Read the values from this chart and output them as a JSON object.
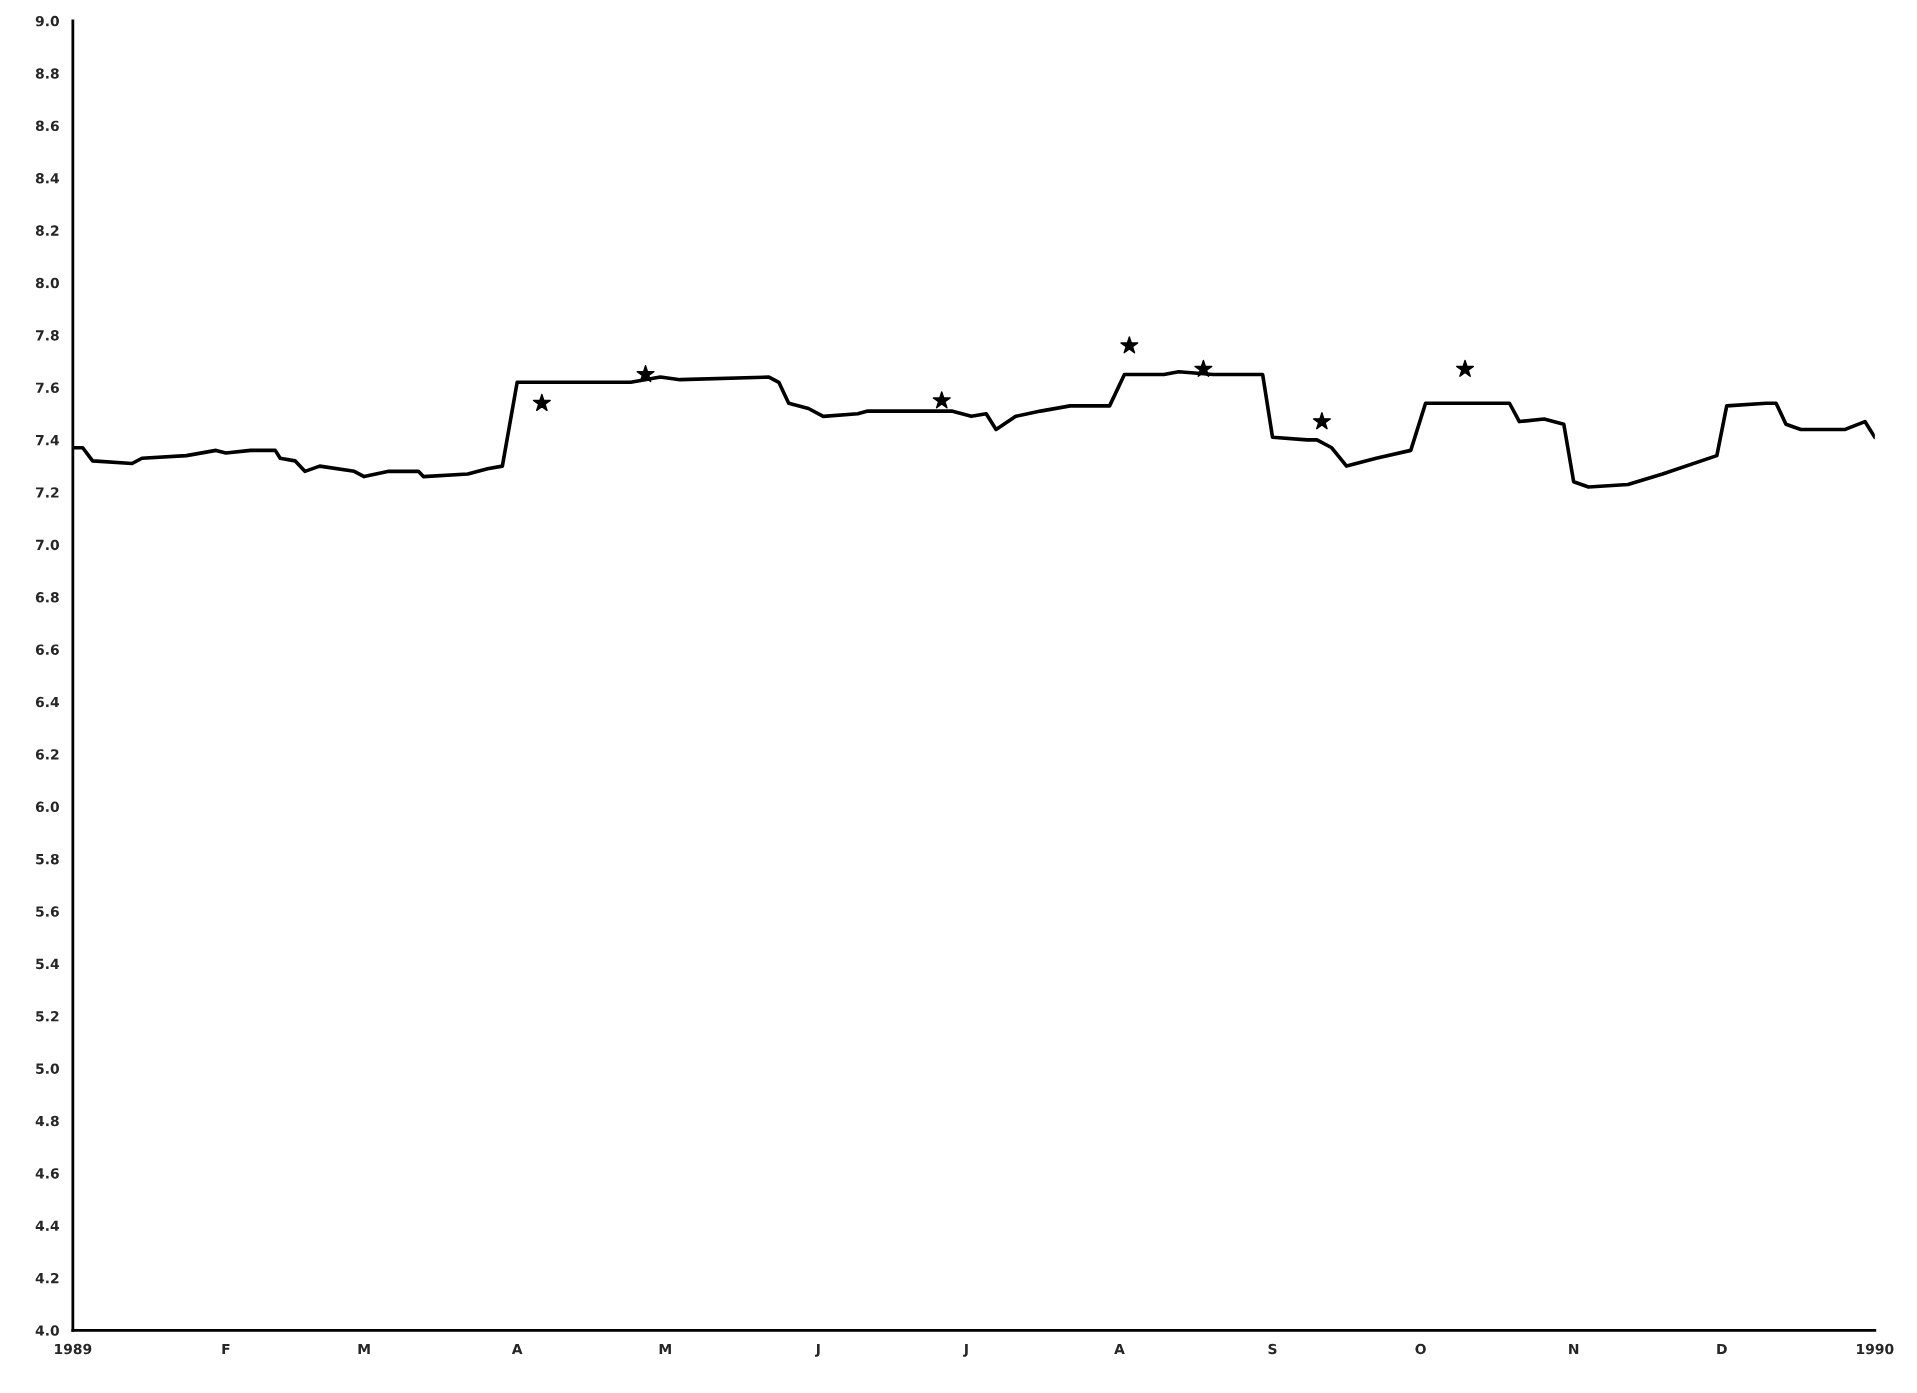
{
  "chart_data": {
    "type": "line",
    "xlim": [
      "1989-01-01",
      "1990-01-01"
    ],
    "xticks": [
      {
        "value": "1989-01-01",
        "label": "1989"
      },
      {
        "value": "1989-02-01",
        "label": "F"
      },
      {
        "value": "1989-03-01",
        "label": "M"
      },
      {
        "value": "1989-04-01",
        "label": "A"
      },
      {
        "value": "1989-05-01",
        "label": "M"
      },
      {
        "value": "1989-06-01",
        "label": "J"
      },
      {
        "value": "1989-07-01",
        "label": "J"
      },
      {
        "value": "1989-08-01",
        "label": "A"
      },
      {
        "value": "1989-09-01",
        "label": "S"
      },
      {
        "value": "1989-10-01",
        "label": "O"
      },
      {
        "value": "1989-11-01",
        "label": "N"
      },
      {
        "value": "1989-12-01",
        "label": "D"
      },
      {
        "value": "1990-01-01",
        "label": "1990"
      }
    ],
    "ylim": [
      4.0,
      9.0
    ],
    "yticks": [
      {
        "value": 4.0,
        "label": "4.0"
      },
      {
        "value": 4.2,
        "label": "4.2"
      },
      {
        "value": 4.4,
        "label": "4.4"
      },
      {
        "value": 4.6,
        "label": "4.6"
      },
      {
        "value": 4.8,
        "label": "4.8"
      },
      {
        "value": 5.0,
        "label": "5.0"
      },
      {
        "value": 5.2,
        "label": "5.2"
      },
      {
        "value": 5.4,
        "label": "5.4"
      },
      {
        "value": 5.6,
        "label": "5.6"
      },
      {
        "value": 5.8,
        "label": "5.8"
      },
      {
        "value": 6.0,
        "label": "6.0"
      },
      {
        "value": 6.2,
        "label": "6.2"
      },
      {
        "value": 6.4,
        "label": "6.4"
      },
      {
        "value": 6.6,
        "label": "6.6"
      },
      {
        "value": 6.8,
        "label": "6.8"
      },
      {
        "value": 7.0,
        "label": "7.0"
      },
      {
        "value": 7.2,
        "label": "7.2"
      },
      {
        "value": 7.4,
        "label": "7.4"
      },
      {
        "value": 7.6,
        "label": "7.6"
      },
      {
        "value": 7.8,
        "label": "7.8"
      },
      {
        "value": 8.0,
        "label": "8.0"
      },
      {
        "value": 8.2,
        "label": "8.2"
      },
      {
        "value": 8.4,
        "label": "8.4"
      },
      {
        "value": 8.6,
        "label": "8.6"
      },
      {
        "value": 8.8,
        "label": "8.8"
      },
      {
        "value": 9.0,
        "label": "9.0"
      }
    ],
    "grid": false,
    "series": [
      {
        "color": "#000000",
        "marker": "none",
        "line_style": "solid",
        "x": [
          "1989-01-01",
          "1989-01-03",
          "1989-01-05",
          "1989-01-13",
          "1989-01-15",
          "1989-01-24",
          "1989-01-30",
          "1989-02-01",
          "1989-02-06",
          "1989-02-11",
          "1989-02-12",
          "1989-02-15",
          "1989-02-17",
          "1989-02-20",
          "1989-02-27",
          "1989-03-01",
          "1989-03-06",
          "1989-03-12",
          "1989-03-13",
          "1989-03-22",
          "1989-03-26",
          "1989-03-29",
          "1989-04-01",
          "1989-04-24",
          "1989-04-30",
          "1989-05-04",
          "1989-05-22",
          "1989-05-24",
          "1989-05-26",
          "1989-05-30",
          "1989-06-02",
          "1989-06-09",
          "1989-06-11",
          "1989-06-28",
          "1989-07-02",
          "1989-07-05",
          "1989-07-07",
          "1989-07-11",
          "1989-07-16",
          "1989-07-22",
          "1989-07-30",
          "1989-08-02",
          "1989-08-10",
          "1989-08-13",
          "1989-08-20",
          "1989-08-23",
          "1989-08-30",
          "1989-09-01",
          "1989-09-08",
          "1989-09-10",
          "1989-09-13",
          "1989-09-16",
          "1989-09-22",
          "1989-09-29",
          "1989-10-02",
          "1989-10-15",
          "1989-10-19",
          "1989-10-21",
          "1989-10-26",
          "1989-10-30",
          "1989-11-01",
          "1989-11-04",
          "1989-11-12",
          "1989-11-19",
          "1989-11-30",
          "1989-12-02",
          "1989-12-10",
          "1989-12-12",
          "1989-12-14",
          "1989-12-17",
          "1989-12-26",
          "1989-12-30",
          "1990-01-01"
        ],
        "values": [
          7.37,
          7.37,
          7.32,
          7.31,
          7.33,
          7.34,
          7.36,
          7.35,
          7.36,
          7.36,
          7.33,
          7.32,
          7.28,
          7.3,
          7.28,
          7.26,
          7.28,
          7.28,
          7.26,
          7.27,
          7.29,
          7.3,
          7.62,
          7.62,
          7.64,
          7.63,
          7.64,
          7.62,
          7.54,
          7.52,
          7.49,
          7.5,
          7.51,
          7.51,
          7.49,
          7.5,
          7.44,
          7.49,
          7.51,
          7.53,
          7.53,
          7.65,
          7.65,
          7.66,
          7.65,
          7.65,
          7.65,
          7.41,
          7.4,
          7.4,
          7.37,
          7.3,
          7.33,
          7.36,
          7.54,
          7.54,
          7.54,
          7.47,
          7.48,
          7.46,
          7.24,
          7.22,
          7.23,
          7.27,
          7.34,
          7.53,
          7.54,
          7.54,
          7.46,
          7.44,
          7.44,
          7.47,
          7.41
        ]
      },
      {
        "type": "scatter",
        "color": "#000000",
        "marker": "star",
        "x": [
          "1989-04-06",
          "1989-04-27",
          "1989-06-26",
          "1989-08-03",
          "1989-08-18",
          "1989-09-11",
          "1989-10-10"
        ],
        "values": [
          7.54,
          7.65,
          7.55,
          7.76,
          7.67,
          7.47,
          7.67
        ]
      }
    ]
  }
}
